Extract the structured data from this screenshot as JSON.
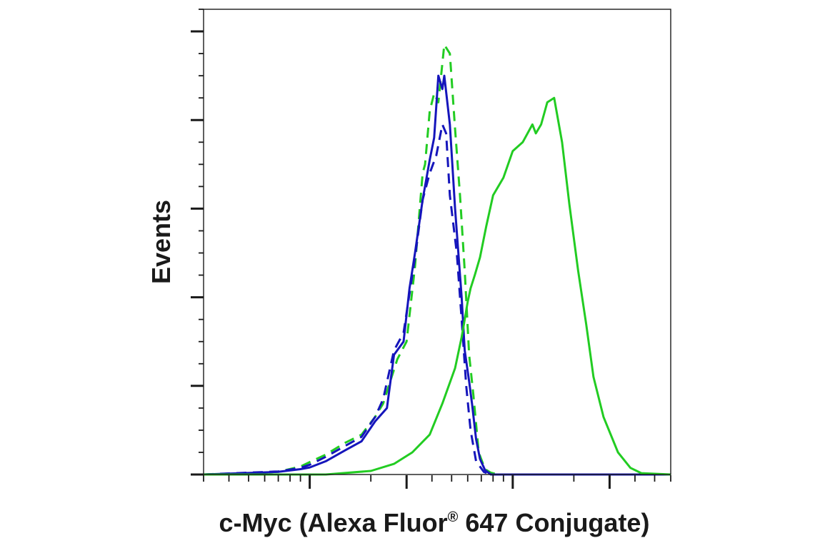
{
  "chart_data": {
    "type": "line",
    "title": "",
    "xlabel_text": "c-Myc (Alexa Fluor",
    "xlabel_registered": "®",
    "xlabel_rest": " 647 Conjugate)",
    "ylabel": "Events",
    "x_scale": "log",
    "x_axis": {
      "range": [
        0.3,
        60
      ],
      "major_ticks": [
        1,
        3,
        10,
        30
      ],
      "tick_labels_shown": false
    },
    "y_axis": {
      "range": [
        0,
        1.05
      ],
      "major_ticks": [
        0,
        0.2,
        0.4,
        0.6,
        0.8,
        1.0
      ],
      "tick_labels_shown": false
    },
    "grid": false,
    "legend": "none",
    "colors": {
      "green": "#22cc22",
      "blue": "#1515bb"
    },
    "series": [
      {
        "color_key": "green",
        "style": "dashed",
        "x": [
          0.3,
          0.7,
          0.9,
          1.0,
          1.2,
          1.5,
          1.8,
          2.1,
          2.3,
          2.7,
          3.0,
          3.3,
          3.6,
          3.7,
          3.9,
          4.1,
          4.3,
          4.6,
          4.9,
          5.2,
          5.5,
          5.8,
          6.1,
          6.4,
          6.8,
          7.3,
          7.8,
          8.5,
          9.5,
          60
        ],
        "y": [
          0.0,
          0.006,
          0.018,
          0.028,
          0.045,
          0.072,
          0.09,
          0.13,
          0.16,
          0.26,
          0.3,
          0.47,
          0.68,
          0.7,
          0.82,
          0.86,
          0.84,
          0.97,
          0.95,
          0.78,
          0.63,
          0.46,
          0.27,
          0.18,
          0.05,
          0.012,
          0.004,
          0.0,
          0.0,
          0.0
        ]
      },
      {
        "color_key": "blue",
        "style": "dashed",
        "x": [
          0.3,
          0.7,
          0.9,
          1.0,
          1.2,
          1.5,
          1.8,
          2.1,
          2.3,
          2.6,
          2.9,
          3.3,
          3.6,
          3.9,
          4.2,
          4.5,
          4.7,
          4.9,
          5.3,
          5.6,
          5.9,
          6.2,
          6.6,
          7.2,
          7.8,
          60
        ],
        "y": [
          0.0,
          0.007,
          0.015,
          0.022,
          0.04,
          0.065,
          0.085,
          0.13,
          0.17,
          0.28,
          0.32,
          0.49,
          0.62,
          0.68,
          0.72,
          0.79,
          0.77,
          0.63,
          0.5,
          0.35,
          0.2,
          0.1,
          0.03,
          0.006,
          0.0,
          0.0
        ]
      },
      {
        "color_key": "blue",
        "style": "solid",
        "x": [
          0.3,
          0.7,
          0.9,
          1.0,
          1.2,
          1.5,
          1.8,
          2.1,
          2.4,
          2.6,
          2.9,
          3.1,
          3.3,
          3.6,
          3.9,
          4.1,
          4.3,
          4.5,
          4.6,
          4.9,
          5.2,
          5.6,
          5.8,
          6.1,
          6.3,
          6.6,
          6.9,
          7.3,
          7.8,
          8.5,
          60
        ],
        "y": [
          0.0,
          0.006,
          0.012,
          0.016,
          0.03,
          0.055,
          0.075,
          0.12,
          0.15,
          0.27,
          0.3,
          0.42,
          0.5,
          0.62,
          0.71,
          0.76,
          0.9,
          0.87,
          0.9,
          0.79,
          0.6,
          0.4,
          0.28,
          0.21,
          0.16,
          0.08,
          0.035,
          0.01,
          0.0,
          0.0,
          0.0
        ]
      },
      {
        "color_key": "green",
        "style": "solid",
        "x": [
          0.3,
          1.2,
          2.0,
          2.6,
          3.2,
          3.9,
          4.5,
          5.2,
          5.6,
          5.8,
          6.0,
          6.2,
          6.5,
          6.9,
          7.4,
          8.0,
          9.0,
          10.0,
          11.2,
          12.5,
          13.0,
          13.8,
          14.8,
          16.0,
          17.5,
          19.0,
          21.0,
          23.0,
          25.0,
          28.0,
          33.0,
          38.0,
          43.0,
          60
        ],
        "y": [
          0.0,
          0.0,
          0.008,
          0.024,
          0.05,
          0.09,
          0.16,
          0.24,
          0.31,
          0.35,
          0.39,
          0.42,
          0.45,
          0.49,
          0.56,
          0.63,
          0.67,
          0.73,
          0.75,
          0.79,
          0.77,
          0.79,
          0.84,
          0.85,
          0.75,
          0.61,
          0.46,
          0.34,
          0.22,
          0.13,
          0.05,
          0.015,
          0.003,
          0.0
        ]
      }
    ]
  }
}
